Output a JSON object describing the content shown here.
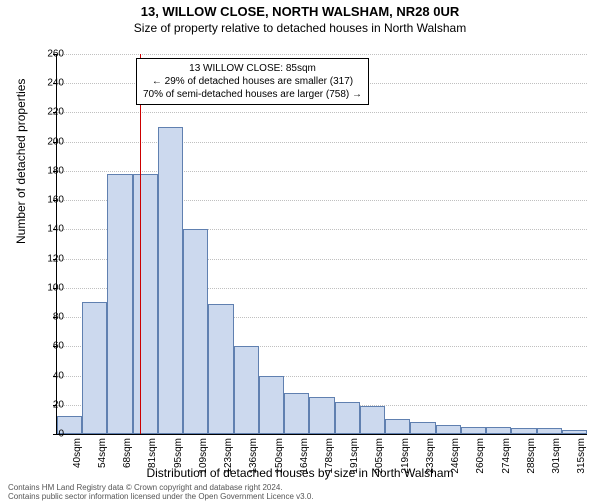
{
  "title": "13, WILLOW CLOSE, NORTH WALSHAM, NR28 0UR",
  "subtitle": "Size of property relative to detached houses in North Walsham",
  "ylabel": "Number of detached properties",
  "xlabel": "Distribution of detached houses by size in North Walsham",
  "footer_line1": "Contains HM Land Registry data © Crown copyright and database right 2024.",
  "footer_line2": "Contains public sector information licensed under the Open Government Licence v3.0.",
  "annotation": {
    "line1": "13 WILLOW CLOSE: 85sqm",
    "line2": "← 29% of detached houses are smaller (317)",
    "line3": "70% of semi-detached houses are larger (758) →"
  },
  "chart": {
    "type": "histogram",
    "ylim": [
      0,
      260
    ],
    "ytick_step": 20,
    "bar_fill": "#ccd9ee",
    "bar_border": "#6080b0",
    "grid_color": "#c0c0c0",
    "background_color": "#ffffff",
    "marker_color": "#cc0000",
    "marker_x_position": 85,
    "x_start": 40,
    "x_step": 13.7,
    "categories": [
      "40sqm",
      "54sqm",
      "68sqm",
      "81sqm",
      "95sqm",
      "109sqm",
      "123sqm",
      "136sqm",
      "150sqm",
      "164sqm",
      "178sqm",
      "191sqm",
      "205sqm",
      "219sqm",
      "233sqm",
      "246sqm",
      "260sqm",
      "274sqm",
      "288sqm",
      "301sqm",
      "315sqm"
    ],
    "values": [
      12,
      90,
      178,
      178,
      210,
      140,
      89,
      60,
      40,
      28,
      25,
      22,
      19,
      10,
      8,
      6,
      5,
      5,
      4,
      4,
      3
    ]
  }
}
